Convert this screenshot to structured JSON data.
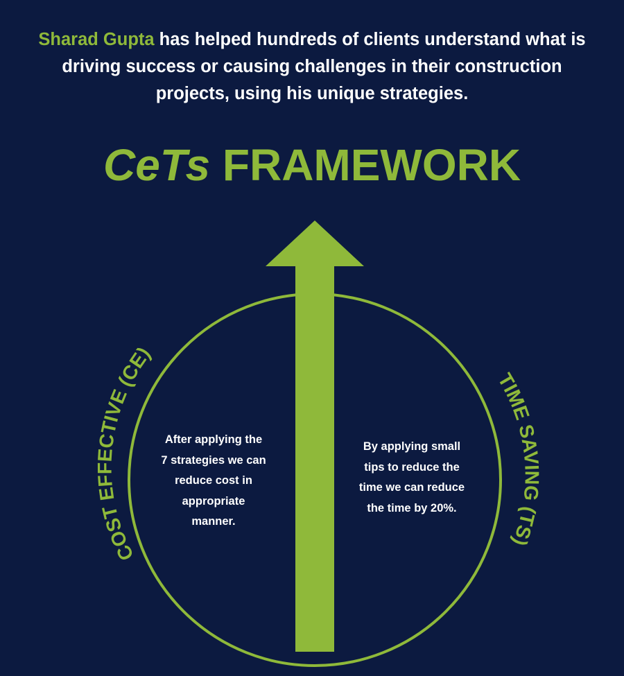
{
  "intro": {
    "name": "Sharad Gupta",
    "text": " has helped hundreds of clients understand what is driving success or causing challenges in their construction projects, using his unique strategies."
  },
  "title": {
    "brand": "CeTs",
    "word": "FRAMEWORK"
  },
  "arc_labels": {
    "left": "COST EFFECTIVE (CE)",
    "right": "TIME SAVING (TS)"
  },
  "descriptions": {
    "left": [
      "After applying the",
      "7 strategies we can",
      "reduce cost in",
      "appropriate",
      "manner."
    ],
    "right": [
      "By applying small",
      "tips to reduce the",
      "time we can reduce",
      "the time by 20%."
    ]
  },
  "colors": {
    "background": "#0c1a40",
    "accent": "#8fb93a",
    "text": "#ffffff"
  }
}
